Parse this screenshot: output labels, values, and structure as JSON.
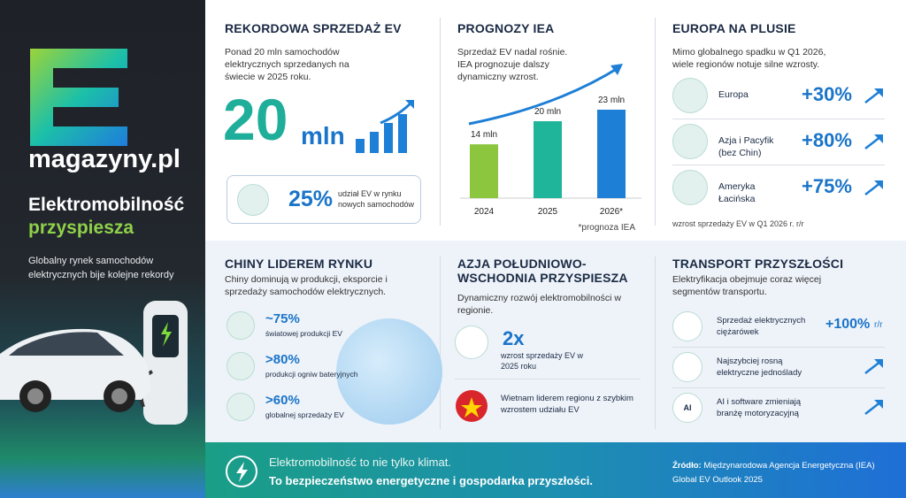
{
  "sidebar": {
    "brand": "magazyny.pl",
    "title": "Elektromobilność",
    "highlight": "przyspiesza",
    "subtitle": "Globalny rynek samochodów elektrycznych bije kolejne rekordy"
  },
  "record": {
    "title": "REKORDOWA SPRZEDAŻ EV",
    "text": "Ponad 20 mln samochodów elektrycznych sprzedanych na świecie w 2025 roku.",
    "big_value": "20",
    "big_unit": "mln",
    "share_value": "25%",
    "share_text": "udział EV w rynku nowych samochodów"
  },
  "forecast": {
    "title": "PROGNOZY IEA",
    "text": "Sprzedaż EV nadal rośnie. IEA prognozuje dalszy dynamiczny wzrost.",
    "chart_data": {
      "type": "bar",
      "categories": [
        "2024",
        "2025",
        "2026*"
      ],
      "values": [
        14,
        20,
        23
      ],
      "value_labels": [
        "14 mln",
        "20 mln",
        "23 mln"
      ],
      "colors": [
        "#8cc63f",
        "#1fb59a",
        "#1e7fd6"
      ]
    },
    "note": "*prognoza IEA"
  },
  "europe": {
    "title": "EUROPA NA PLUSIE",
    "text": "Mimo globalnego spadku w Q1 2026, wiele regionów notuje silne wzrosty.",
    "rows": [
      {
        "name": "Europa",
        "value": "+30%"
      },
      {
        "name": "Azja i Pacyfik (bez Chin)",
        "value": "+80%"
      },
      {
        "name": "Ameryka Łacińska",
        "value": "+75%"
      }
    ],
    "note": "wzrost sprzedaży EV w Q1 2026 r. r/r"
  },
  "china": {
    "title": "CHINY LIDEREM RYNKU",
    "text": "Chiny dominują w produkcji, eksporcie i sprzedaży samochodów elektrycznych.",
    "items": [
      {
        "value": "~75%",
        "label": "światowej produkcji EV"
      },
      {
        "value": ">80%",
        "label": "produkcji ogniw bateryjnych"
      },
      {
        "value": ">60%",
        "label": "globalnej sprzedaży EV"
      }
    ]
  },
  "sea": {
    "title": "AZJA POŁUDNIOWO-WSCHODNIA PRZYSPIESZA",
    "text": "Dynamiczny rozwój elektromobilności w regionie.",
    "growth_value": "2x",
    "growth_label": "wzrost sprzedaży EV w 2025 roku",
    "vietnam": "Wietnam liderem regionu z szybkim wzrostem udziału EV"
  },
  "transport": {
    "title": "TRANSPORT PRZYSZŁOŚCI",
    "text": "Elektryfikacja obejmuje coraz więcej segmentów transportu.",
    "items": [
      {
        "label": "Sprzedaż elektrycznych ciężarówek",
        "value": "+100%",
        "unit": "r/r"
      },
      {
        "label": "Najszybciej rosną elektryczne jednoślady"
      },
      {
        "label": "AI i software zmieniają branżę motoryzacyjną",
        "icon_label": "AI"
      }
    ]
  },
  "footer": {
    "line1": "Elektromobilność to nie tylko klimat.",
    "line2": "To bezpieczeństwo energetyczne i gospodarka przyszłości.",
    "source_label": "Źródło:",
    "source": "Międzynarodowa Agencja Energetyczna (IEA) Global EV Outlook 2025"
  }
}
